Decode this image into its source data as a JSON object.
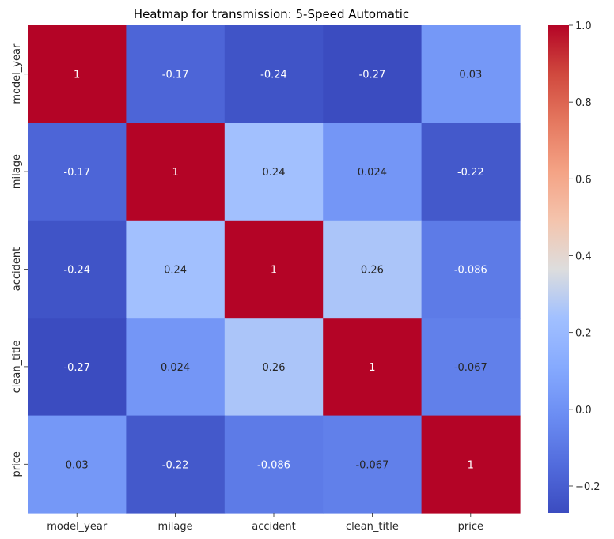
{
  "chart_data": {
    "type": "heatmap",
    "title": "Heatmap for transmission: 5-Speed Automatic",
    "xlabel": "",
    "ylabel": "",
    "x_categories": [
      "model_year",
      "milage",
      "accident",
      "clean_title",
      "price"
    ],
    "y_categories": [
      "model_year",
      "milage",
      "accident",
      "clean_title",
      "price"
    ],
    "values": [
      [
        1,
        -0.17,
        -0.24,
        -0.27,
        0.03
      ],
      [
        -0.17,
        1,
        0.24,
        0.024,
        -0.22
      ],
      [
        -0.24,
        0.24,
        1,
        0.26,
        -0.086
      ],
      [
        -0.27,
        0.024,
        0.26,
        1,
        -0.067
      ],
      [
        0.03,
        -0.22,
        -0.086,
        -0.067,
        1
      ]
    ],
    "value_labels": [
      [
        "1",
        "-0.17",
        "-0.24",
        "-0.27",
        "0.03"
      ],
      [
        "-0.17",
        "1",
        "0.24",
        "0.024",
        "-0.22"
      ],
      [
        "-0.24",
        "0.24",
        "1",
        "0.26",
        "-0.086"
      ],
      [
        "-0.27",
        "0.024",
        "0.26",
        "1",
        "-0.067"
      ],
      [
        "0.03",
        "-0.22",
        "-0.086",
        "-0.067",
        "1"
      ]
    ],
    "colormap": "coolwarm",
    "colorbar": {
      "min": -0.27,
      "max": 1.0,
      "ticks": [
        -0.2,
        0.0,
        0.2,
        0.4,
        0.6,
        0.8,
        1.0
      ],
      "tick_labels": [
        "−0.2",
        "0.0",
        "0.2",
        "0.4",
        "0.6",
        "0.8",
        "1.0"
      ]
    },
    "annotations_shown": true,
    "grid": false
  }
}
